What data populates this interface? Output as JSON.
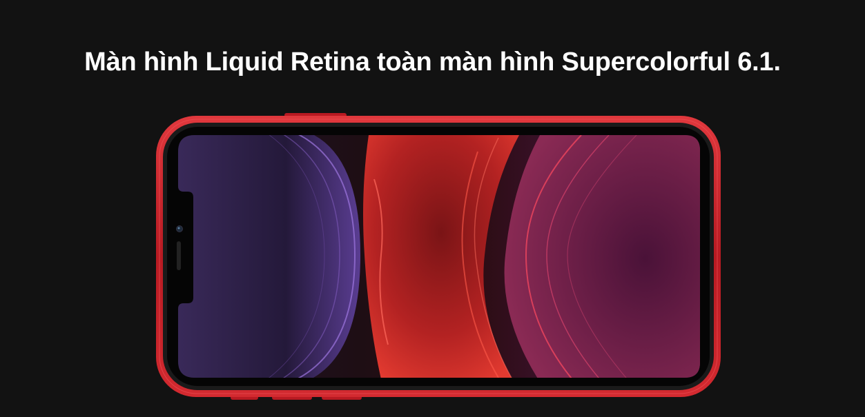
{
  "hero": {
    "headline": "Màn hình Liquid Retina toàn màn hình Supercolorful 6.1."
  },
  "figure": {
    "subject": "iphone-landscape-display",
    "frame_color": "#c8202a",
    "bezel_color": "#1a1a1a",
    "wallpaper_colors": [
      "#2a1d3f",
      "#7f4fc4",
      "#c8242a",
      "#5e1a48"
    ]
  }
}
